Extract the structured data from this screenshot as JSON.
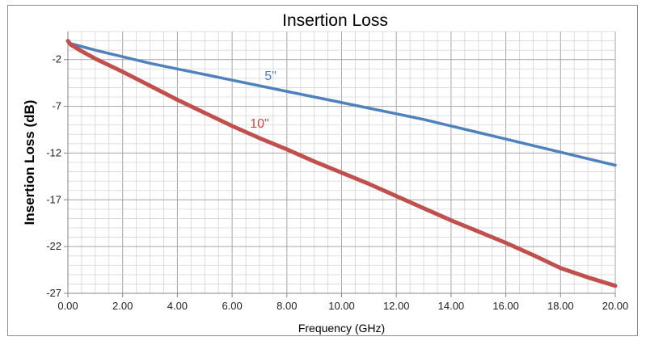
{
  "chart_data": {
    "type": "line",
    "title": "Insertion Loss",
    "xlabel": "Frequency (GHz)",
    "ylabel": "Insertion Loss (dB)",
    "xlim": [
      0,
      20
    ],
    "ylim": [
      -27,
      1
    ],
    "x_ticks": [
      0,
      2,
      4,
      6,
      8,
      10,
      12,
      14,
      16,
      18,
      20
    ],
    "x_tick_labels": [
      "0.00",
      "2.00",
      "4.00",
      "6.00",
      "8.00",
      "10.00",
      "12.00",
      "14.00",
      "16.00",
      "18.00",
      "20.00"
    ],
    "y_ticks": [
      -2,
      -7,
      -12,
      -17,
      -22,
      -27
    ],
    "y_tick_labels": [
      "-2",
      "-7",
      "-12",
      "-17",
      "-22",
      "-27"
    ],
    "grid": true,
    "minor_grid": {
      "x_step": 0.5,
      "y_step": 1
    },
    "x": [
      0,
      0.1,
      0.5,
      1,
      2,
      3,
      4,
      5,
      6,
      7,
      8,
      9,
      10,
      11,
      12,
      13,
      14,
      15,
      16,
      17,
      18,
      19,
      20
    ],
    "series": [
      {
        "name": "5\"",
        "color": "#4f81bd",
        "values": [
          0.0,
          -0.3,
          -0.6,
          -1.0,
          -1.7,
          -2.4,
          -3.0,
          -3.6,
          -4.2,
          -4.8,
          -5.4,
          -6.0,
          -6.6,
          -7.2,
          -7.8,
          -8.4,
          -9.1,
          -9.8,
          -10.5,
          -11.2,
          -11.9,
          -12.6,
          -13.3
        ]
      },
      {
        "name": "10\"",
        "color": "#c0504d",
        "values": [
          0.0,
          -0.4,
          -1.1,
          -1.9,
          -3.3,
          -4.8,
          -6.3,
          -7.7,
          -9.1,
          -10.4,
          -11.6,
          -12.9,
          -14.1,
          -15.3,
          -16.6,
          -17.9,
          -19.2,
          -20.4,
          -21.6,
          -22.9,
          -24.3,
          -25.3,
          -26.2
        ]
      }
    ],
    "annotations": [
      {
        "text": "5\"",
        "series": 0,
        "x": 7.4,
        "y": -4.2,
        "color": "#4f81bd"
      },
      {
        "text": "10\"",
        "series": 1,
        "x": 7.0,
        "y": -9.3,
        "color": "#c0504d"
      }
    ]
  }
}
